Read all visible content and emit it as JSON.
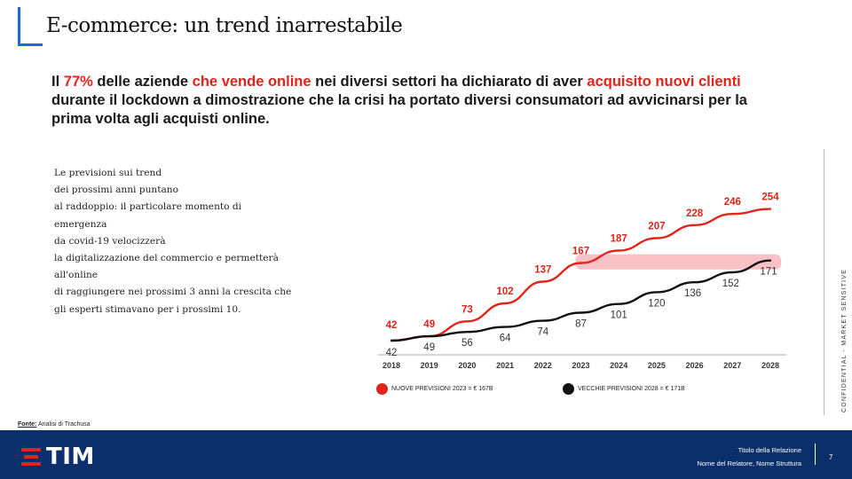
{
  "title": "E-commerce: un trend inarrestabile",
  "intro": {
    "p1": "Il ",
    "h1": "77%",
    "p2": " delle aziende ",
    "h2": "che vende online",
    "p3": " nei diversi settori ha dichiarato di aver ",
    "h3": "acquisito nuovi clienti",
    "p4": " durante il lockdown a dimostrazione che la crisi ha portato diversi consumatori ad avvicinarsi per la prima volta agli acquisti online."
  },
  "side_text": [
    "Le previsioni sui trend",
    "dei prossimi anni puntano",
    "al raddoppio: il particolare momento di",
    "emergenza",
    "da covid-19 velocizzerà",
    "la digitalizzazione del commercio e permetterà",
    "all'online",
    "di raggiungere nei prossimi 3 anni  la crescita che",
    "gli esperti stimavano per i prossimi 10."
  ],
  "chart_data": {
    "type": "line",
    "x": [
      "2018",
      "2019",
      "2020",
      "2021",
      "2022",
      "2023",
      "2024",
      "2025",
      "2026",
      "2027",
      "2028"
    ],
    "series": [
      {
        "name": "NUOVE PREVISIONI 2023 = € 167B",
        "color": "#e2231a",
        "values": [
          42,
          49,
          73,
          102,
          137,
          167,
          187,
          207,
          228,
          246,
          254
        ]
      },
      {
        "name": "VECCHIE PREVISIONI 2028 = € 171B",
        "color": "#111111",
        "values": [
          42,
          49,
          56,
          64,
          74,
          87,
          101,
          120,
          136,
          152,
          171
        ]
      }
    ],
    "highlight_band": {
      "from_x": "2023",
      "to_x": "2028",
      "y_value": 171,
      "color": "#f7b7bd"
    },
    "legend_position": "bottom",
    "grid": false
  },
  "vertical_label": "CONFIDENTIAL - MARKET SENSITIVE",
  "source": {
    "label": "Fonte:",
    "text": "Analisi di Trachusa"
  },
  "footer": {
    "logo_text": "TIM",
    "report_title": "Titolo della Relazione",
    "author": "Nome del Relatore, Nome Struttura",
    "page": "7"
  }
}
